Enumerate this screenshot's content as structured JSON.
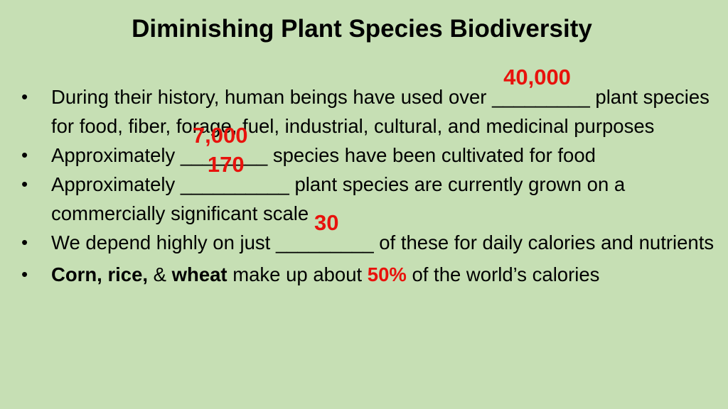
{
  "slide": {
    "title": "Diminishing Plant Species Biodiversity",
    "bullets": [
      {
        "before": "During their history, human beings have used over ",
        "blank": "_________",
        "answer": "40,000",
        "after": " plant species for food, fiber, forage, fuel, industrial, cultural, and medicinal purposes"
      },
      {
        "before": "Approximately ",
        "blank": "________",
        "answer": "7,000",
        "after": " species have been cultivated for food"
      },
      {
        "before": "Approximately ",
        "blank": "__________",
        "answer": "170",
        "after": " plant species are currently grown on a commercially significant scale"
      },
      {
        "before": "We depend highly on just ",
        "blank": "_________",
        "answer": "30",
        "after": " of these for daily calories and nutrients"
      },
      {
        "bold_lead": "Corn, rice,",
        "amp": " & ",
        "bold_wheat": "wheat",
        "middle": " make up about ",
        "percent": "50%",
        "after": " of the world’s calories"
      }
    ],
    "bullet_symbol": "•"
  },
  "colors": {
    "background": "#c6dfb4",
    "answer_red": "#e8120c",
    "text": "#000000"
  }
}
